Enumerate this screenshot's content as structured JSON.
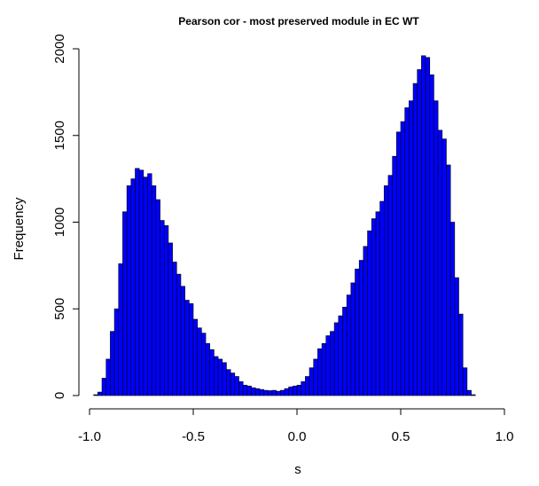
{
  "chart_data": {
    "type": "bar",
    "subtype": "histogram",
    "title": "Pearson cor - most preserved module in EC WT",
    "xlabel": "s",
    "ylabel": "Frequency",
    "bar_color": "#0000ff",
    "border_color": "#000000",
    "xlim": [
      -1.0,
      1.0
    ],
    "ylim": [
      0,
      2000
    ],
    "xticks": [
      "-1.0",
      "-0.5",
      "0.0",
      "0.5",
      "1.0"
    ],
    "yticks": [
      "0",
      "500",
      "1000",
      "1500",
      "2000"
    ],
    "grid": false,
    "bin_width": 0.02,
    "bin_start": -0.98,
    "values": [
      5,
      20,
      100,
      210,
      370,
      500,
      760,
      1060,
      1210,
      1250,
      1310,
      1300,
      1260,
      1280,
      1210,
      1130,
      1010,
      980,
      880,
      770,
      700,
      630,
      550,
      530,
      440,
      390,
      360,
      300,
      265,
      225,
      210,
      190,
      150,
      130,
      110,
      80,
      60,
      55,
      45,
      40,
      35,
      30,
      28,
      30,
      25,
      30,
      40,
      50,
      55,
      60,
      80,
      110,
      160,
      210,
      270,
      300,
      345,
      370,
      420,
      460,
      510,
      580,
      650,
      730,
      780,
      860,
      950,
      1020,
      1060,
      1120,
      1210,
      1270,
      1380,
      1520,
      1580,
      1660,
      1700,
      1800,
      1880,
      1960,
      1950,
      1850,
      1700,
      1530,
      1480,
      1330,
      1000,
      680,
      470,
      160,
      30,
      5
    ]
  }
}
